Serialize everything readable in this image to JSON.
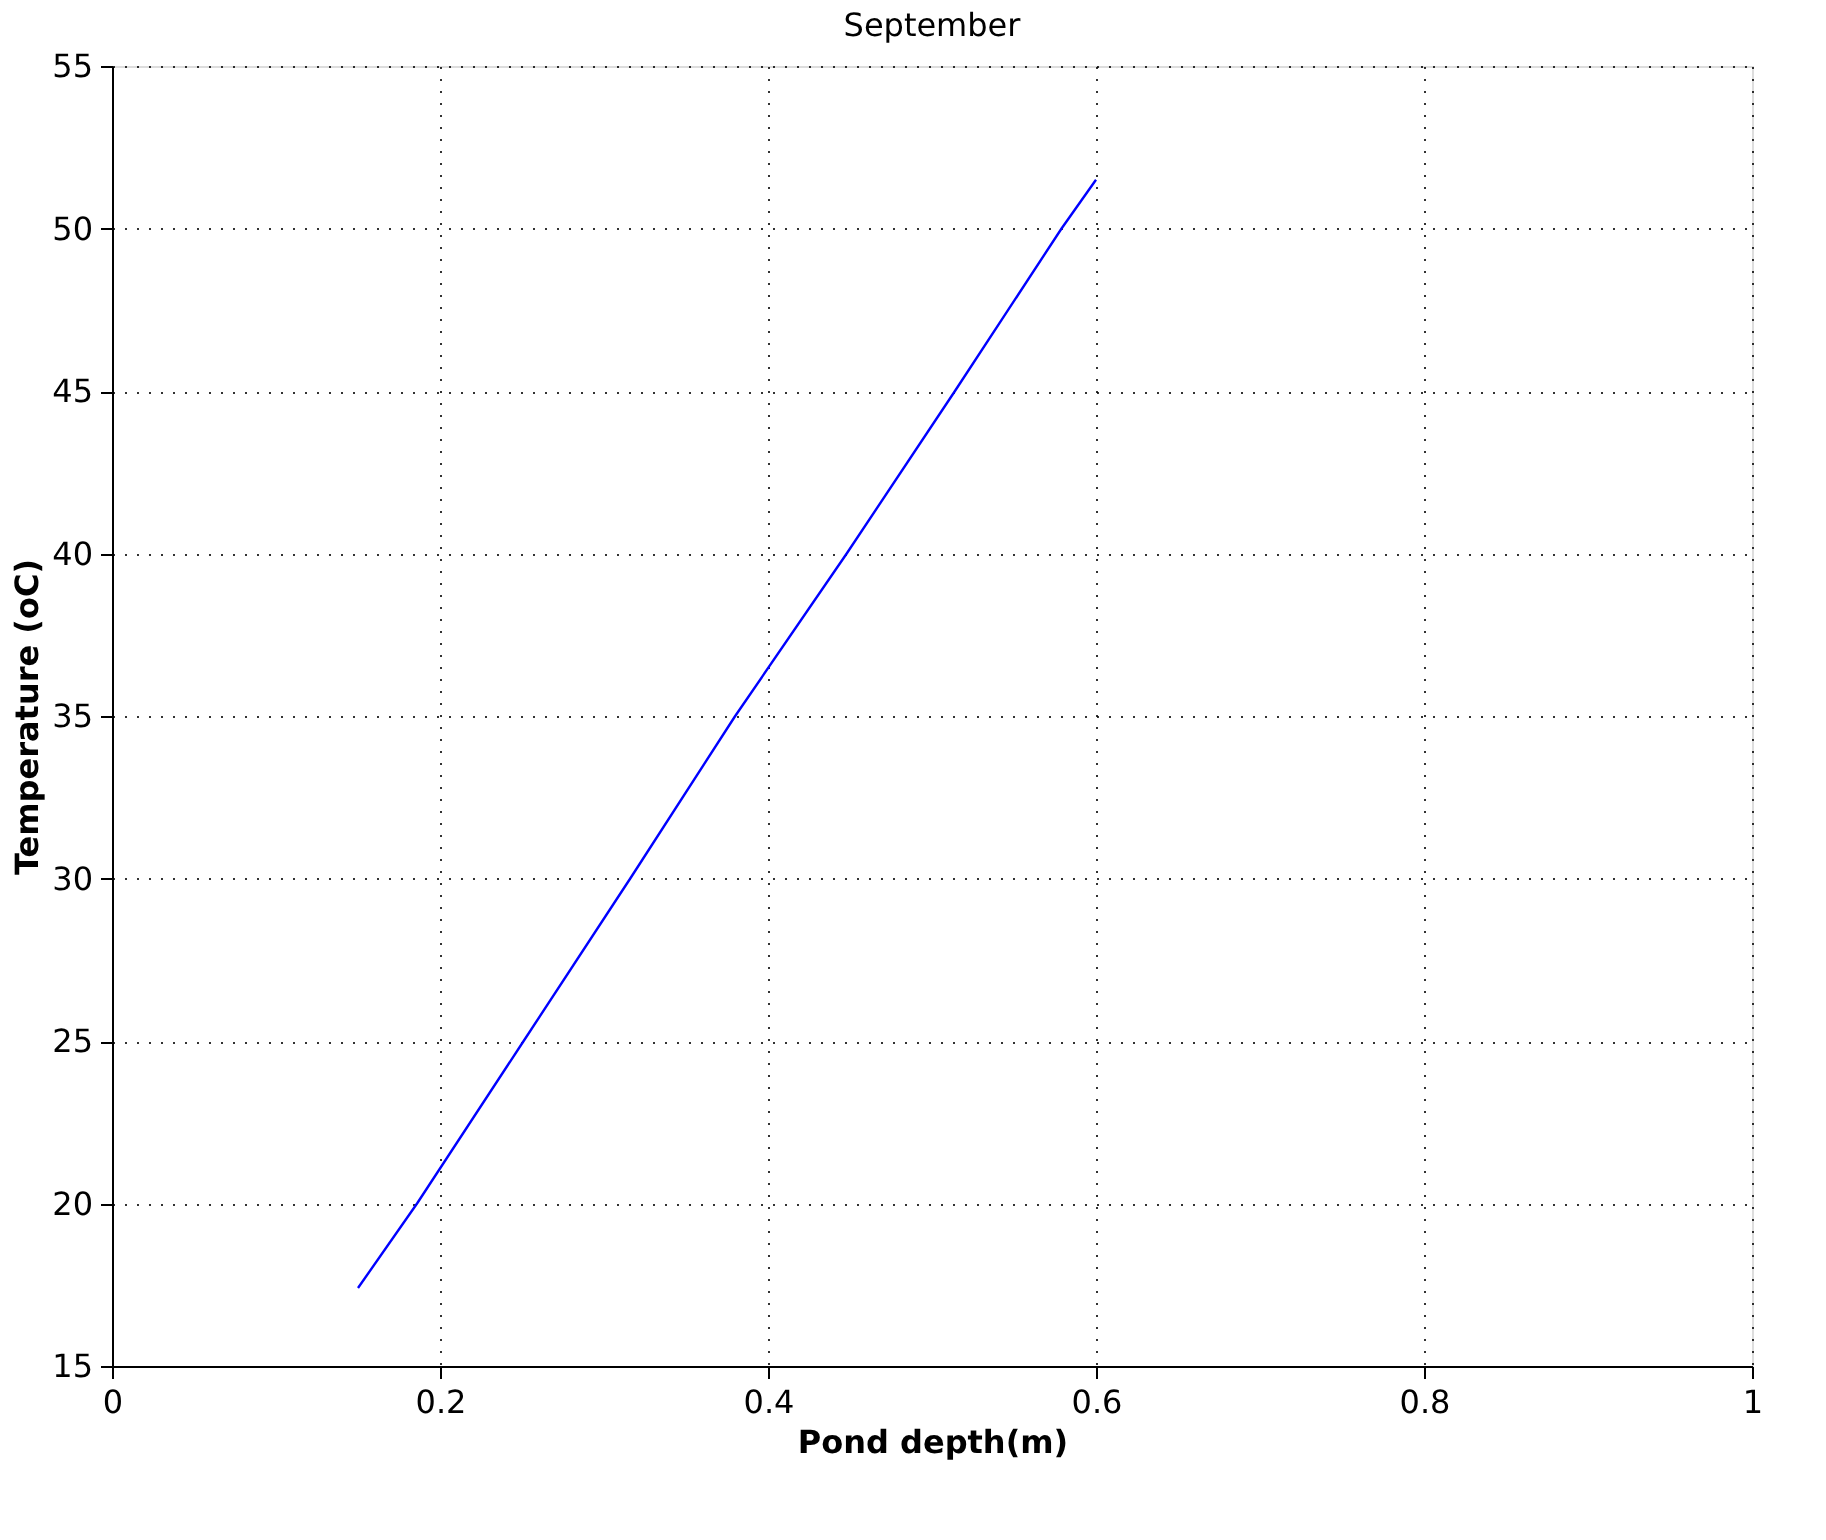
{
  "chart_data": {
    "type": "line",
    "title": "September",
    "xlabel": "Pond depth(m)",
    "ylabel": "Temperature (oC)",
    "series": [
      {
        "color": "#0000ff",
        "x": [
          0.15,
          0.186,
          0.251,
          0.316,
          0.38,
          0.448,
          0.514,
          0.579,
          0.6
        ],
        "values": [
          17.4,
          20,
          25,
          30,
          35,
          40,
          45,
          50,
          51.5
        ]
      }
    ],
    "xlim": [
      0,
      1
    ],
    "xticks": [
      0,
      0.2,
      0.4,
      0.6,
      0.8,
      1
    ],
    "ylim": [
      15,
      55
    ],
    "yticks": [
      15,
      20,
      25,
      30,
      35,
      40,
      45,
      50,
      55
    ],
    "grid": true,
    "line_style": "solid",
    "marker": "none"
  }
}
